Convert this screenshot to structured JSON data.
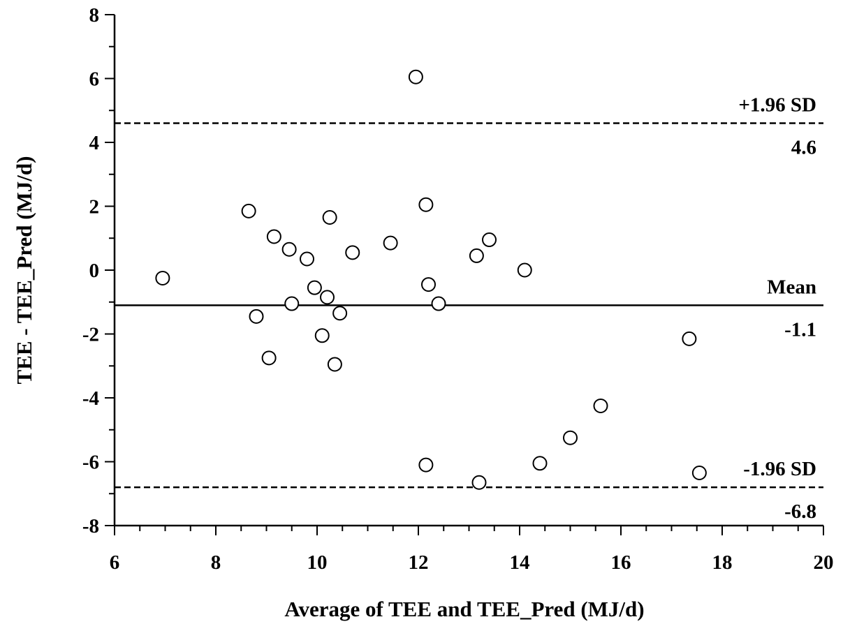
{
  "chart_data": {
    "type": "scatter",
    "title": "",
    "xlabel": "Average of TEE and TEE_Pred (MJ/d)",
    "ylabel": "TEE - TEE_Pred (MJ/d)",
    "xlim": [
      6,
      20
    ],
    "ylim": [
      -8,
      8
    ],
    "x_ticks": [
      6,
      8,
      10,
      12,
      14,
      16,
      18,
      20
    ],
    "y_ticks": [
      -8,
      -6,
      -4,
      -2,
      0,
      2,
      4,
      6,
      8
    ],
    "grid": false,
    "points": [
      {
        "x": 6.95,
        "y": -0.25
      },
      {
        "x": 8.65,
        "y": 1.85
      },
      {
        "x": 8.8,
        "y": -1.45
      },
      {
        "x": 9.05,
        "y": -2.75
      },
      {
        "x": 9.15,
        "y": 1.05
      },
      {
        "x": 9.45,
        "y": 0.65
      },
      {
        "x": 9.5,
        "y": -1.05
      },
      {
        "x": 9.8,
        "y": 0.35
      },
      {
        "x": 9.95,
        "y": -0.55
      },
      {
        "x": 10.1,
        "y": -2.05
      },
      {
        "x": 10.2,
        "y": -0.85
      },
      {
        "x": 10.25,
        "y": 1.65
      },
      {
        "x": 10.35,
        "y": -2.95
      },
      {
        "x": 10.45,
        "y": -1.35
      },
      {
        "x": 10.7,
        "y": 0.55
      },
      {
        "x": 11.45,
        "y": 0.85
      },
      {
        "x": 11.95,
        "y": 6.05
      },
      {
        "x": 12.15,
        "y": 2.05
      },
      {
        "x": 12.2,
        "y": -0.45
      },
      {
        "x": 12.15,
        "y": -6.1
      },
      {
        "x": 12.4,
        "y": -1.05
      },
      {
        "x": 13.15,
        "y": 0.45
      },
      {
        "x": 13.2,
        "y": -6.65
      },
      {
        "x": 13.4,
        "y": 0.95
      },
      {
        "x": 14.1,
        "y": 0.0
      },
      {
        "x": 14.4,
        "y": -6.05
      },
      {
        "x": 15.0,
        "y": -5.25
      },
      {
        "x": 15.6,
        "y": -4.25
      },
      {
        "x": 17.35,
        "y": -2.15
      },
      {
        "x": 17.55,
        "y": -6.35
      }
    ],
    "reference_lines": [
      {
        "name": "+1.96 SD",
        "value_label": "4.6",
        "y": 4.6,
        "style": "dashed"
      },
      {
        "name": "Mean",
        "value_label": "-1.1",
        "y": -1.1,
        "style": "solid"
      },
      {
        "name": "-1.96 SD",
        "value_label": "-6.8",
        "y": -6.8,
        "style": "dashed"
      }
    ],
    "marker": "open-circle",
    "line_color": "#000000"
  }
}
